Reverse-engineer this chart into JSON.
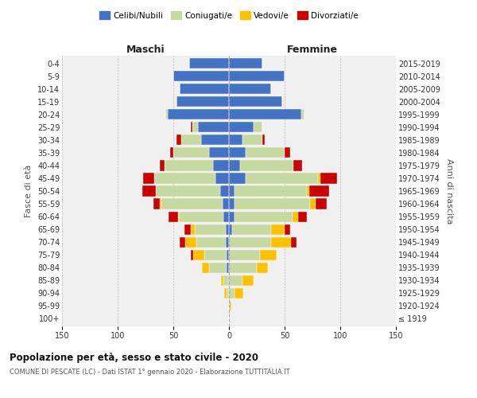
{
  "age_groups": [
    "100+",
    "95-99",
    "90-94",
    "85-89",
    "80-84",
    "75-79",
    "70-74",
    "65-69",
    "60-64",
    "55-59",
    "50-54",
    "45-49",
    "40-44",
    "35-39",
    "30-34",
    "25-29",
    "20-24",
    "15-19",
    "10-14",
    "5-9",
    "0-4"
  ],
  "birth_years": [
    "≤ 1919",
    "1920-1924",
    "1925-1929",
    "1930-1934",
    "1935-1939",
    "1940-1944",
    "1945-1949",
    "1950-1954",
    "1955-1959",
    "1960-1964",
    "1965-1969",
    "1970-1974",
    "1975-1979",
    "1980-1984",
    "1985-1989",
    "1990-1994",
    "1995-1999",
    "2000-2004",
    "2005-2009",
    "2010-2014",
    "2015-2019"
  ],
  "colors": {
    "celibi": "#4472c4",
    "coniugati": "#c5d9a0",
    "vedovi": "#ffc000",
    "divorziati": "#cc0000"
  },
  "maschi": {
    "celibi": [
      0,
      0,
      0,
      1,
      2,
      2,
      3,
      3,
      5,
      6,
      8,
      12,
      14,
      18,
      25,
      28,
      55,
      47,
      44,
      50,
      36
    ],
    "coniugati": [
      0,
      0,
      2,
      4,
      16,
      20,
      26,
      28,
      40,
      55,
      58,
      55,
      44,
      32,
      18,
      5,
      2,
      0,
      0,
      0,
      0
    ],
    "vedovi": [
      0,
      0,
      2,
      2,
      6,
      10,
      10,
      3,
      1,
      1,
      0,
      0,
      0,
      0,
      0,
      0,
      0,
      0,
      0,
      0,
      0
    ],
    "divorziati": [
      0,
      0,
      0,
      0,
      0,
      2,
      5,
      6,
      8,
      6,
      12,
      10,
      4,
      3,
      4,
      1,
      0,
      0,
      0,
      0,
      0
    ]
  },
  "femmine": {
    "celibi": [
      0,
      0,
      0,
      0,
      0,
      0,
      0,
      3,
      5,
      5,
      5,
      15,
      10,
      15,
      12,
      22,
      65,
      48,
      38,
      50,
      30
    ],
    "coniugati": [
      0,
      1,
      5,
      12,
      25,
      28,
      38,
      35,
      52,
      68,
      65,
      65,
      48,
      35,
      18,
      8,
      3,
      0,
      0,
      0,
      0
    ],
    "vedovi": [
      0,
      1,
      8,
      10,
      10,
      15,
      18,
      12,
      5,
      5,
      2,
      2,
      0,
      0,
      0,
      0,
      0,
      0,
      0,
      0,
      0
    ],
    "divorziati": [
      0,
      0,
      0,
      0,
      0,
      0,
      5,
      5,
      8,
      10,
      18,
      15,
      8,
      5,
      2,
      0,
      0,
      0,
      0,
      0,
      0
    ]
  },
  "xlim": 150,
  "title": "Popolazione per età, sesso e stato civile - 2020",
  "subtitle": "COMUNE DI PESCATE (LC) - Dati ISTAT 1° gennaio 2020 - Elaborazione TUTTITALIA.IT",
  "xlabel_left": "Maschi",
  "xlabel_right": "Femmine",
  "ylabel_left": "Fasce di età",
  "ylabel_right": "Anni di nascita",
  "legend_labels": [
    "Celibi/Nubili",
    "Coniugati/e",
    "Vedovi/e",
    "Divorziati/e"
  ],
  "background_color": "#f0f0f0",
  "bar_height": 0.82
}
